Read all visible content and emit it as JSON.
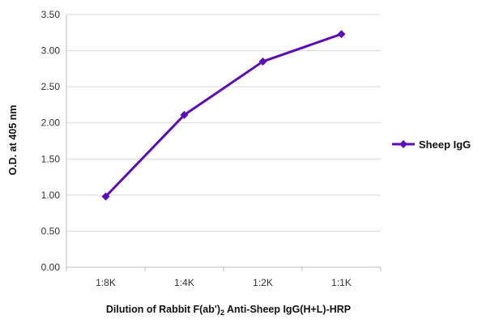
{
  "chart_data": {
    "type": "line",
    "title": "",
    "xlabel_parts": {
      "before": "Dilution of Rabbit F(ab')",
      "subscript": "2",
      "after": " Anti-Sheep IgG(H+L)-HRP"
    },
    "ylabel": "O.D. at 405 nm",
    "categories": [
      "1:8K",
      "1:4K",
      "1:2K",
      "1:1K"
    ],
    "ylim": [
      0,
      3.5
    ],
    "yticks": [
      "0.00",
      "0.50",
      "1.00",
      "1.50",
      "2.00",
      "2.50",
      "3.00",
      "3.50"
    ],
    "grid": "horizontal",
    "legend_position": "right",
    "series": [
      {
        "name": "Sheep IgG",
        "values": [
          0.98,
          2.11,
          2.85,
          3.23
        ],
        "color": "#5B0DB8",
        "marker": "diamond"
      }
    ]
  },
  "colors": {
    "gridline": "#D9D9D9",
    "axis": "#BFBFBF"
  }
}
